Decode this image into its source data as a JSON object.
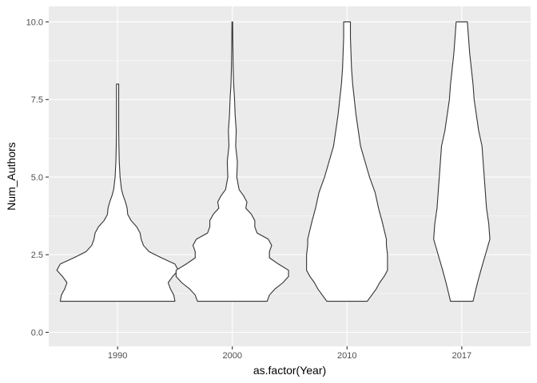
{
  "chart_data": {
    "type": "violin",
    "title": "",
    "xlabel": "as.factor(Year)",
    "ylabel": "Num_Authors",
    "categories": [
      "1990",
      "2000",
      "2010",
      "2017"
    ],
    "ylim": [
      -0.45,
      10.5
    ],
    "y_ticks": [
      0,
      2.5,
      5,
      7.5,
      10
    ],
    "y_tick_labels": [
      "0.0",
      "2.5",
      "5.0",
      "7.5",
      "10.0"
    ],
    "grid": true,
    "panel_color": "#ebebeb",
    "grid_color": "#ffffff",
    "violin_fill": "#ffffff",
    "violin_stroke": "#333333",
    "violins": [
      {
        "category": "1990",
        "profile": [
          [
            1.0,
            0.51
          ],
          [
            1.2,
            0.5
          ],
          [
            1.4,
            0.47
          ],
          [
            1.6,
            0.45
          ],
          [
            1.8,
            0.49
          ],
          [
            2.0,
            0.54
          ],
          [
            2.2,
            0.51
          ],
          [
            2.4,
            0.39
          ],
          [
            2.6,
            0.28
          ],
          [
            2.8,
            0.23
          ],
          [
            3.0,
            0.21
          ],
          [
            3.2,
            0.2
          ],
          [
            3.4,
            0.17
          ],
          [
            3.6,
            0.12
          ],
          [
            3.8,
            0.09
          ],
          [
            4.0,
            0.085
          ],
          [
            4.2,
            0.07
          ],
          [
            4.4,
            0.05
          ],
          [
            4.6,
            0.035
          ],
          [
            5.0,
            0.022
          ],
          [
            5.5,
            0.015
          ],
          [
            6.0,
            0.012
          ],
          [
            6.5,
            0.01
          ],
          [
            7.0,
            0.01
          ],
          [
            7.5,
            0.01
          ],
          [
            8.0,
            0.01
          ]
        ]
      },
      {
        "category": "2000",
        "profile": [
          [
            1.0,
            0.31
          ],
          [
            1.2,
            0.33
          ],
          [
            1.4,
            0.38
          ],
          [
            1.6,
            0.45
          ],
          [
            1.8,
            0.5
          ],
          [
            2.0,
            0.5
          ],
          [
            2.2,
            0.41
          ],
          [
            2.4,
            0.33
          ],
          [
            2.6,
            0.33
          ],
          [
            2.8,
            0.35
          ],
          [
            3.0,
            0.32
          ],
          [
            3.2,
            0.22
          ],
          [
            3.4,
            0.2
          ],
          [
            3.6,
            0.2
          ],
          [
            3.8,
            0.17
          ],
          [
            4.0,
            0.12
          ],
          [
            4.2,
            0.13
          ],
          [
            4.4,
            0.1
          ],
          [
            4.6,
            0.06
          ],
          [
            5.0,
            0.04
          ],
          [
            5.5,
            0.045
          ],
          [
            6.0,
            0.03
          ],
          [
            6.5,
            0.035
          ],
          [
            7.0,
            0.025
          ],
          [
            7.5,
            0.02
          ],
          [
            8.0,
            0.012
          ],
          [
            8.5,
            0.008
          ],
          [
            9.0,
            0.006
          ],
          [
            9.5,
            0.004
          ],
          [
            10.0,
            0.003
          ]
        ]
      },
      {
        "category": "2010",
        "profile": [
          [
            1.0,
            0.18
          ],
          [
            1.2,
            0.22
          ],
          [
            1.4,
            0.26
          ],
          [
            1.6,
            0.29
          ],
          [
            1.8,
            0.33
          ],
          [
            2.0,
            0.36
          ],
          [
            2.2,
            0.36
          ],
          [
            2.5,
            0.36
          ],
          [
            2.8,
            0.35
          ],
          [
            3.0,
            0.35
          ],
          [
            3.3,
            0.33
          ],
          [
            3.6,
            0.31
          ],
          [
            4.0,
            0.28
          ],
          [
            4.5,
            0.25
          ],
          [
            5.0,
            0.2
          ],
          [
            5.5,
            0.16
          ],
          [
            6.0,
            0.12
          ],
          [
            6.5,
            0.1
          ],
          [
            7.0,
            0.08
          ],
          [
            7.5,
            0.065
          ],
          [
            8.0,
            0.05
          ],
          [
            8.5,
            0.04
          ],
          [
            9.0,
            0.035
          ],
          [
            9.5,
            0.03
          ],
          [
            10.0,
            0.03
          ]
        ]
      },
      {
        "category": "2017",
        "profile": [
          [
            1.0,
            0.1
          ],
          [
            1.3,
            0.12
          ],
          [
            1.6,
            0.14
          ],
          [
            2.0,
            0.17
          ],
          [
            2.5,
            0.21
          ],
          [
            3.0,
            0.25
          ],
          [
            3.5,
            0.24
          ],
          [
            4.0,
            0.22
          ],
          [
            4.5,
            0.21
          ],
          [
            5.0,
            0.2
          ],
          [
            5.5,
            0.19
          ],
          [
            6.0,
            0.18
          ],
          [
            6.5,
            0.15
          ],
          [
            7.0,
            0.13
          ],
          [
            7.5,
            0.11
          ],
          [
            8.0,
            0.1
          ],
          [
            8.5,
            0.085
          ],
          [
            9.0,
            0.07
          ],
          [
            9.5,
            0.06
          ],
          [
            10.0,
            0.05
          ]
        ]
      }
    ]
  }
}
